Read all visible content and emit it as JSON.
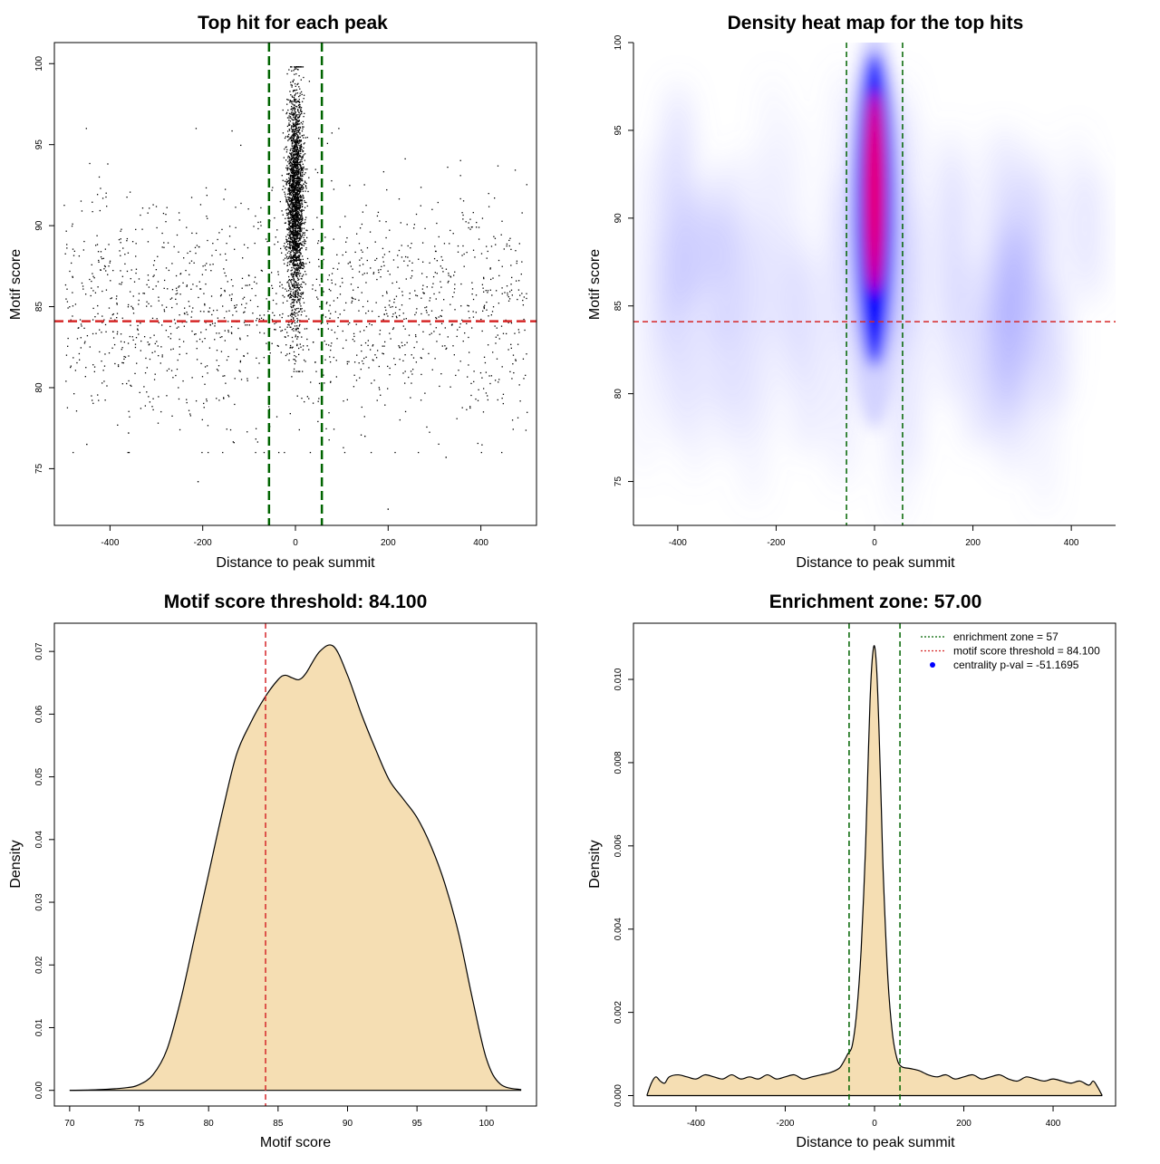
{
  "colors": {
    "green": "#006400",
    "red": "#d62728",
    "fill": "#f5deb3",
    "heat_low": "#ffffff",
    "heat_mid": "#0000ff",
    "heat_high": "#ff0000"
  },
  "chart_data": [
    {
      "id": "scatter",
      "type": "scatter",
      "title": "Top hit for each peak",
      "xlabel": "Distance to peak summit",
      "ylabel": "Motif score",
      "xlim": [
        -520,
        520
      ],
      "ylim": [
        71.5,
        101.3
      ],
      "xticks": [
        -400,
        -200,
        0,
        200,
        400
      ],
      "yticks": [
        75,
        80,
        85,
        90,
        95,
        100
      ],
      "vlines": [
        -57,
        57
      ],
      "hline": 84.1,
      "points": {
        "central": {
          "x_range": [
            -30,
            30
          ],
          "y_range": [
            81,
            99.8
          ],
          "count": 2500,
          "peak_y": 91.5
        },
        "background": {
          "x_range": [
            -500,
            500
          ],
          "y_range": [
            76,
            96
          ],
          "count": 1500,
          "mean_y": 85.0
        },
        "outliers": [
          [
            -450,
            76.5
          ],
          [
            -210,
            74.2
          ],
          [
            200,
            72.5
          ],
          [
            325,
            75.7
          ],
          [
            -360,
            77.2
          ],
          [
            150,
            77.0
          ]
        ]
      },
      "grid": false
    },
    {
      "id": "heatmap",
      "type": "heatmap",
      "title": "Density heat map for the top hits",
      "xlabel": "Distance to peak summit",
      "ylabel": "Motif score",
      "xlim": [
        -490,
        490
      ],
      "ylim": [
        72.5,
        100
      ],
      "xticks": [
        -400,
        -200,
        0,
        200,
        400
      ],
      "yticks": [
        75,
        80,
        85,
        90,
        95,
        100
      ],
      "vlines": [
        -57,
        57
      ],
      "hline": 84.1,
      "peak_center": {
        "x": 0,
        "y": 91.5
      },
      "grid": false
    },
    {
      "id": "score-density",
      "type": "area",
      "title": "Motif score threshold: 84.100",
      "xlabel": "Motif score",
      "ylabel": "Density",
      "xlim": [
        68.9,
        103.6
      ],
      "ylim": [
        -0.0025,
        0.0745
      ],
      "xticks": [
        70,
        75,
        80,
        85,
        90,
        95,
        100
      ],
      "yticks": [
        0.0,
        0.01,
        0.02,
        0.03,
        0.04,
        0.05,
        0.06,
        0.07
      ],
      "ytick_labels": [
        "0.00",
        "0.01",
        "0.02",
        "0.03",
        "0.04",
        "0.05",
        "0.06",
        "0.07"
      ],
      "vline": 84.1,
      "x": [
        70,
        72,
        74,
        75,
        76,
        77,
        78,
        79,
        80,
        81,
        82,
        83,
        84,
        85,
        85.5,
        86,
        86.5,
        87,
        88,
        89,
        90,
        91,
        92,
        93,
        94,
        95,
        96,
        97,
        98,
        99,
        100,
        101,
        102.5
      ],
      "y": [
        0.0,
        0.0001,
        0.0004,
        0.0009,
        0.0025,
        0.0065,
        0.0145,
        0.0245,
        0.0345,
        0.0445,
        0.0535,
        0.0585,
        0.0625,
        0.0655,
        0.0662,
        0.0658,
        0.0655,
        0.0665,
        0.07,
        0.0708,
        0.0662,
        0.06,
        0.0545,
        0.0495,
        0.0465,
        0.0435,
        0.039,
        0.033,
        0.025,
        0.0145,
        0.005,
        0.001,
        0.0001
      ],
      "grid": false
    },
    {
      "id": "distance-density",
      "type": "area",
      "title": "Enrichment zone: 57.00",
      "xlabel": "Distance to peak summit",
      "ylabel": "Density",
      "xlim": [
        -540,
        540
      ],
      "ylim": [
        -0.00025,
        0.01135
      ],
      "xticks": [
        -400,
        -200,
        0,
        200,
        400
      ],
      "yticks": [
        0.0,
        0.002,
        0.004,
        0.006,
        0.008,
        0.01
      ],
      "ytick_labels": [
        "0.000",
        "0.002",
        "0.004",
        "0.006",
        "0.008",
        "0.010"
      ],
      "vlines": [
        -57,
        57
      ],
      "x": [
        -510,
        -500,
        -490,
        -480,
        -470,
        -460,
        -440,
        -420,
        -400,
        -380,
        -360,
        -340,
        -320,
        -300,
        -280,
        -260,
        -240,
        -220,
        -200,
        -180,
        -160,
        -140,
        -120,
        -100,
        -80,
        -70,
        -60,
        -50,
        -40,
        -30,
        -20,
        -15,
        -10,
        -5,
        0,
        5,
        10,
        15,
        20,
        30,
        40,
        50,
        60,
        80,
        100,
        120,
        140,
        160,
        180,
        200,
        220,
        240,
        260,
        280,
        300,
        320,
        340,
        360,
        380,
        400,
        420,
        440,
        460,
        480,
        490,
        500,
        510
      ],
      "y": [
        0.0,
        0.0003,
        0.00045,
        0.00035,
        0.0003,
        0.00045,
        0.0005,
        0.00045,
        0.0004,
        0.0005,
        0.00045,
        0.0004,
        0.0005,
        0.0004,
        0.00045,
        0.0004,
        0.0005,
        0.0004,
        0.00045,
        0.0005,
        0.0004,
        0.00045,
        0.0005,
        0.00055,
        0.00065,
        0.0008,
        0.001,
        0.0012,
        0.002,
        0.0035,
        0.006,
        0.0078,
        0.0095,
        0.0105,
        0.0108,
        0.0102,
        0.0088,
        0.007,
        0.0052,
        0.0028,
        0.0015,
        0.0009,
        0.0007,
        0.00065,
        0.0006,
        0.0005,
        0.00045,
        0.0005,
        0.0004,
        0.00045,
        0.0005,
        0.0004,
        0.00045,
        0.0005,
        0.0004,
        0.00035,
        0.00045,
        0.0004,
        0.00035,
        0.0004,
        0.00035,
        0.0003,
        0.00035,
        0.00025,
        0.00035,
        0.0002,
        0.0
      ],
      "legend": {
        "position": "top-right",
        "items": [
          {
            "label": "enrichment zone = 57",
            "style": "dotted",
            "color": "#006400"
          },
          {
            "label": "motif score threshold = 84.100",
            "style": "dotted",
            "color": "#d62728"
          },
          {
            "label": "centrality p-val = -51.1695",
            "style": "point",
            "color": "#0000ff"
          }
        ]
      },
      "grid": false
    }
  ]
}
